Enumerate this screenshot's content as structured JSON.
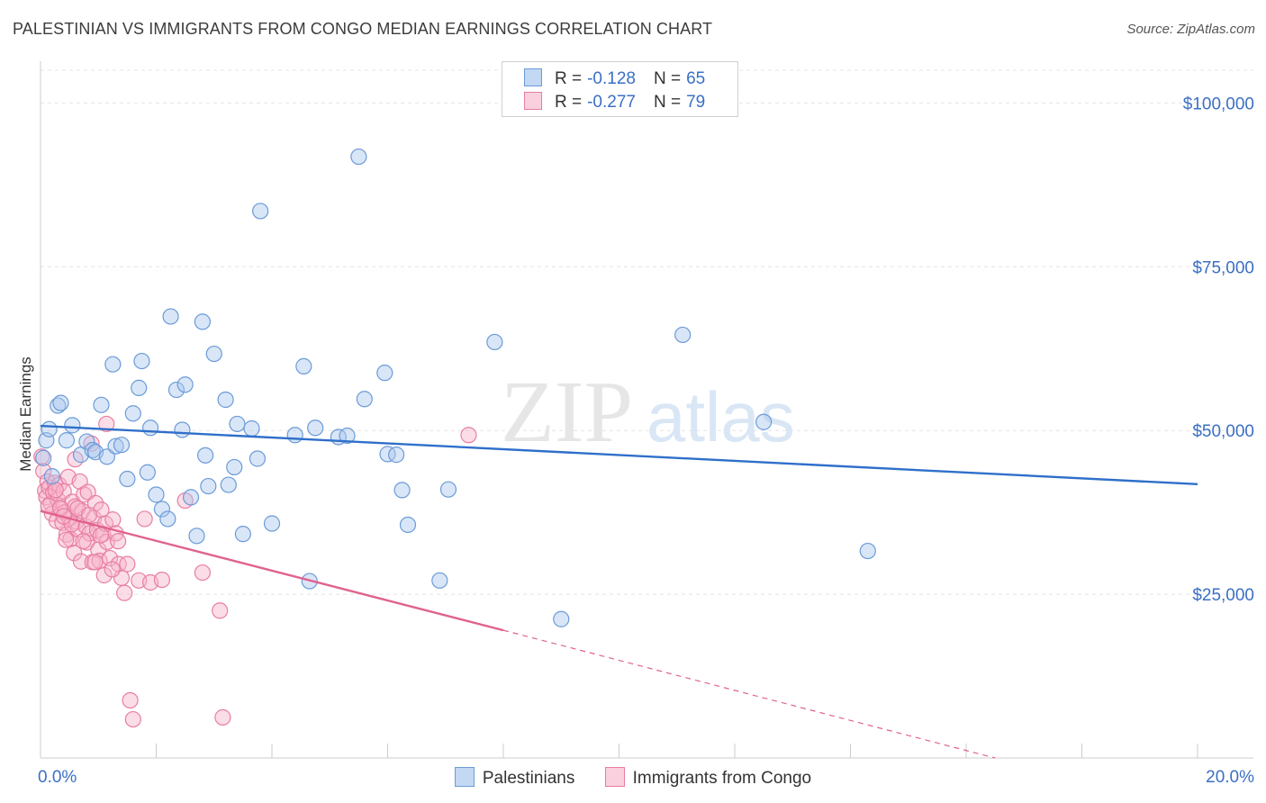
{
  "header": {
    "title": "PALESTINIAN VS IMMIGRANTS FROM CONGO MEDIAN EARNINGS CORRELATION CHART",
    "source": "Source: ZipAtlas.com"
  },
  "watermark": {
    "part1": "ZIP",
    "part2": "atlas"
  },
  "legend": {
    "rows": [
      {
        "r_label": "R =",
        "r_value": "-0.128",
        "n_label": "N =",
        "n_value": "65"
      },
      {
        "r_label": "R =",
        "r_value": "-0.277",
        "n_label": "N =",
        "n_value": "79"
      }
    ]
  },
  "bottom_legend": [
    "Palestinians",
    "Immigrants from Congo"
  ],
  "colors": {
    "blue_fill": "#aac8ee",
    "blue_stroke": "#6b9bd8",
    "blue_line": "#2f6fca",
    "pink_fill": "#f6b3ca",
    "pink_stroke": "#e87ea3",
    "pink_line": "#e0628f",
    "axis_text": "#3b6fc4"
  },
  "chart_data": {
    "type": "scatter",
    "xlabel": "",
    "ylabel": "Median Earnings",
    "xlim": [
      0,
      20
    ],
    "ylim": [
      0,
      105000
    ],
    "y_ticks": [
      25000,
      50000,
      75000,
      100000
    ],
    "y_tick_labels": [
      "$25,000",
      "$50,000",
      "$75,000",
      "$100,000"
    ],
    "x_tick_labels": [
      "0.0%",
      "20.0%"
    ],
    "grid": true,
    "legend_position": "top-center",
    "series": [
      {
        "name": "Palestinians",
        "trend": {
          "x0": 0,
          "y0": 50700,
          "x1": 20,
          "y1": 41800
        },
        "points": [
          [
            0.05,
            45800
          ],
          [
            0.1,
            48500
          ],
          [
            0.15,
            50200
          ],
          [
            0.3,
            53800
          ],
          [
            0.35,
            54200
          ],
          [
            0.45,
            48500
          ],
          [
            0.55,
            50800
          ],
          [
            0.7,
            46300
          ],
          [
            0.8,
            48300
          ],
          [
            0.9,
            47000
          ],
          [
            0.95,
            46700
          ],
          [
            1.05,
            53900
          ],
          [
            1.15,
            46000
          ],
          [
            1.25,
            60100
          ],
          [
            1.3,
            47600
          ],
          [
            1.4,
            47800
          ],
          [
            1.5,
            42600
          ],
          [
            1.6,
            52600
          ],
          [
            1.7,
            56500
          ],
          [
            1.75,
            60600
          ],
          [
            1.85,
            43600
          ],
          [
            1.9,
            50400
          ],
          [
            2.0,
            40200
          ],
          [
            2.1,
            38000
          ],
          [
            2.2,
            36500
          ],
          [
            2.25,
            67400
          ],
          [
            2.35,
            56200
          ],
          [
            2.45,
            50100
          ],
          [
            2.5,
            57000
          ],
          [
            2.6,
            39800
          ],
          [
            2.7,
            33900
          ],
          [
            2.8,
            66600
          ],
          [
            2.85,
            46200
          ],
          [
            2.9,
            41500
          ],
          [
            3.0,
            61700
          ],
          [
            3.2,
            54700
          ],
          [
            3.25,
            41700
          ],
          [
            3.35,
            44400
          ],
          [
            3.4,
            51000
          ],
          [
            3.5,
            34200
          ],
          [
            3.65,
            50300
          ],
          [
            3.75,
            45700
          ],
          [
            3.8,
            83500
          ],
          [
            4.0,
            35800
          ],
          [
            4.4,
            49300
          ],
          [
            4.55,
            59800
          ],
          [
            4.65,
            27000
          ],
          [
            4.75,
            50400
          ],
          [
            5.15,
            49000
          ],
          [
            5.3,
            49200
          ],
          [
            5.5,
            91800
          ],
          [
            5.6,
            54800
          ],
          [
            5.95,
            58800
          ],
          [
            6.0,
            46400
          ],
          [
            6.15,
            46300
          ],
          [
            6.25,
            40900
          ],
          [
            6.35,
            35600
          ],
          [
            6.9,
            27100
          ],
          [
            7.05,
            41000
          ],
          [
            7.85,
            63500
          ],
          [
            9.0,
            21200
          ],
          [
            11.1,
            64600
          ],
          [
            12.5,
            51300
          ],
          [
            14.3,
            31600
          ],
          [
            0.2,
            43000
          ]
        ]
      },
      {
        "name": "Immigrants from Congo",
        "trend": {
          "x0": 0,
          "y0": 37700,
          "x1": 8,
          "y1": 19500,
          "dash_x1": 16.5,
          "dash_y1": 0
        },
        "points": [
          [
            0.02,
            46000
          ],
          [
            0.05,
            43800
          ],
          [
            0.08,
            40800
          ],
          [
            0.1,
            39800
          ],
          [
            0.12,
            42200
          ],
          [
            0.15,
            41300
          ],
          [
            0.18,
            38800
          ],
          [
            0.2,
            37300
          ],
          [
            0.22,
            40500
          ],
          [
            0.25,
            42000
          ],
          [
            0.28,
            36200
          ],
          [
            0.3,
            39400
          ],
          [
            0.32,
            41700
          ],
          [
            0.35,
            38000
          ],
          [
            0.38,
            35900
          ],
          [
            0.4,
            40700
          ],
          [
            0.42,
            37500
          ],
          [
            0.45,
            34100
          ],
          [
            0.48,
            42900
          ],
          [
            0.5,
            36600
          ],
          [
            0.52,
            33400
          ],
          [
            0.55,
            39100
          ],
          [
            0.58,
            31300
          ],
          [
            0.6,
            38400
          ],
          [
            0.62,
            36100
          ],
          [
            0.65,
            34900
          ],
          [
            0.68,
            42200
          ],
          [
            0.7,
            30000
          ],
          [
            0.72,
            37700
          ],
          [
            0.75,
            40200
          ],
          [
            0.78,
            35400
          ],
          [
            0.8,
            32900
          ],
          [
            0.82,
            40600
          ],
          [
            0.85,
            34300
          ],
          [
            0.88,
            48000
          ],
          [
            0.9,
            29900
          ],
          [
            0.92,
            36600
          ],
          [
            0.95,
            38900
          ],
          [
            0.98,
            34800
          ],
          [
            1.0,
            31800
          ],
          [
            1.02,
            30100
          ],
          [
            1.05,
            37900
          ],
          [
            1.08,
            34200
          ],
          [
            1.1,
            27900
          ],
          [
            1.12,
            35800
          ],
          [
            1.15,
            33000
          ],
          [
            1.2,
            30500
          ],
          [
            1.25,
            36400
          ],
          [
            1.3,
            34300
          ],
          [
            1.35,
            29600
          ],
          [
            1.4,
            27500
          ],
          [
            1.45,
            25200
          ],
          [
            1.5,
            29600
          ],
          [
            1.55,
            8800
          ],
          [
            1.6,
            5900
          ],
          [
            1.7,
            27100
          ],
          [
            1.8,
            36500
          ],
          [
            1.9,
            26800
          ],
          [
            2.1,
            27200
          ],
          [
            2.5,
            39300
          ],
          [
            2.8,
            28300
          ],
          [
            3.1,
            22500
          ],
          [
            3.15,
            6200
          ],
          [
            7.4,
            49300
          ],
          [
            0.14,
            38500
          ],
          [
            0.26,
            40900
          ],
          [
            0.34,
            38200
          ],
          [
            0.44,
            33300
          ],
          [
            0.54,
            35700
          ],
          [
            0.64,
            38100
          ],
          [
            0.74,
            33100
          ],
          [
            0.84,
            37100
          ],
          [
            0.94,
            29900
          ],
          [
            1.04,
            34000
          ],
          [
            1.14,
            51000
          ],
          [
            1.24,
            28800
          ],
          [
            0.6,
            45600
          ],
          [
            0.4,
            36900
          ],
          [
            1.34,
            33100
          ]
        ]
      }
    ]
  }
}
